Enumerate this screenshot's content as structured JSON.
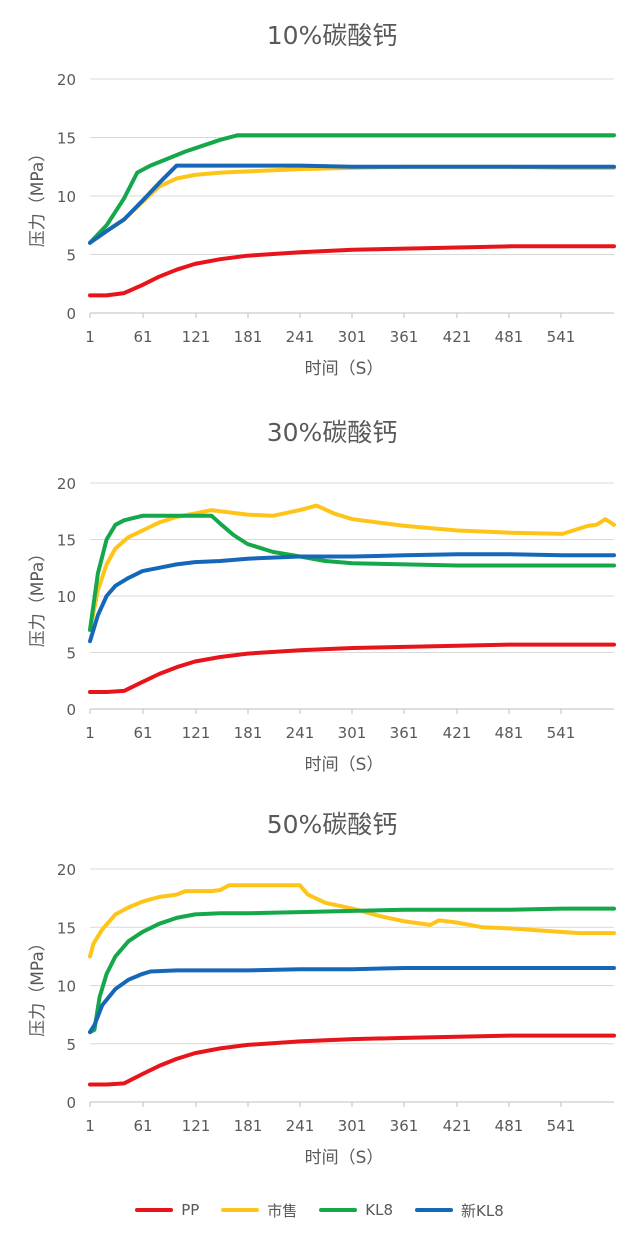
{
  "colors": {
    "PP": "#e8141b",
    "市售": "#ffc418",
    "KL8": "#14a84a",
    "新KL8": "#1767b8",
    "grid": "#d9d9d9",
    "text": "#595959"
  },
  "chart_data": [
    {
      "type": "line",
      "title": "10%碳酸钙",
      "xlabel": "时间（S）",
      "ylabel": "压力（MPa）",
      "ylim": [
        0,
        20
      ],
      "xlim": [
        1,
        600
      ],
      "yticks": [
        "0",
        "5",
        "10",
        "15",
        "20"
      ],
      "xticks": [
        "1",
        "61",
        "121",
        "181",
        "241",
        "301",
        "361",
        "421",
        "481",
        "541"
      ],
      "grid": true,
      "series": [
        {
          "name": "PP",
          "x": [
            1,
            20,
            40,
            61,
            80,
            100,
            121,
            150,
            181,
            241,
            301,
            361,
            421,
            481,
            541,
            600
          ],
          "y": [
            1.5,
            1.5,
            1.7,
            2.4,
            3.1,
            3.7,
            4.2,
            4.6,
            4.9,
            5.2,
            5.4,
            5.5,
            5.6,
            5.7,
            5.7,
            5.7
          ]
        },
        {
          "name": "市售",
          "x": [
            1,
            20,
            40,
            61,
            80,
            100,
            121,
            150,
            181,
            241,
            301,
            361,
            421,
            481,
            541,
            600
          ],
          "y": [
            6.0,
            7.0,
            8.0,
            9.5,
            10.8,
            11.5,
            11.8,
            12.0,
            12.1,
            12.3,
            12.4,
            12.5,
            12.5,
            12.5,
            12.4,
            12.4
          ]
        },
        {
          "name": "KL8",
          "x": [
            1,
            20,
            40,
            55,
            70,
            90,
            110,
            130,
            150,
            170,
            200,
            241,
            301,
            361,
            421,
            481,
            541,
            600
          ],
          "y": [
            6.0,
            7.5,
            9.8,
            12.0,
            12.6,
            13.2,
            13.8,
            14.3,
            14.8,
            15.2,
            15.2,
            15.2,
            15.2,
            15.2,
            15.2,
            15.2,
            15.2,
            15.2
          ]
        },
        {
          "name": "新KL8",
          "x": [
            1,
            20,
            40,
            61,
            80,
            100,
            121,
            150,
            181,
            241,
            301,
            361,
            421,
            481,
            541,
            600
          ],
          "y": [
            6.0,
            7.0,
            8.0,
            9.6,
            11.1,
            12.6,
            12.6,
            12.6,
            12.6,
            12.6,
            12.5,
            12.5,
            12.5,
            12.5,
            12.5,
            12.5
          ]
        }
      ]
    },
    {
      "type": "line",
      "title": "30%碳酸钙",
      "xlabel": "时间（S）",
      "ylabel": "压力（MPa）",
      "ylim": [
        0,
        20
      ],
      "xlim": [
        1,
        600
      ],
      "yticks": [
        "0",
        "5",
        "10",
        "15",
        "20"
      ],
      "xticks": [
        "1",
        "61",
        "121",
        "181",
        "241",
        "301",
        "361",
        "421",
        "481",
        "541"
      ],
      "grid": true,
      "series": [
        {
          "name": "PP",
          "x": [
            1,
            20,
            40,
            61,
            80,
            100,
            121,
            150,
            181,
            241,
            301,
            361,
            421,
            481,
            541,
            600
          ],
          "y": [
            1.5,
            1.5,
            1.6,
            2.4,
            3.1,
            3.7,
            4.2,
            4.6,
            4.9,
            5.2,
            5.4,
            5.5,
            5.6,
            5.7,
            5.7,
            5.7
          ]
        },
        {
          "name": "市售",
          "x": [
            1,
            10,
            20,
            30,
            45,
            61,
            80,
            100,
            121,
            140,
            150,
            181,
            210,
            241,
            260,
            280,
            301,
            361,
            421,
            481,
            541,
            570,
            580,
            590,
            600
          ],
          "y": [
            7.0,
            10.5,
            12.8,
            14.2,
            15.2,
            15.8,
            16.5,
            17.0,
            17.3,
            17.6,
            17.5,
            17.2,
            17.1,
            17.6,
            18.0,
            17.3,
            16.8,
            16.2,
            15.8,
            15.6,
            15.5,
            16.2,
            16.3,
            16.8,
            16.3
          ]
        },
        {
          "name": "KL8",
          "x": [
            1,
            10,
            20,
            30,
            40,
            61,
            80,
            100,
            121,
            140,
            150,
            165,
            181,
            210,
            241,
            270,
            301,
            361,
            421,
            481,
            541,
            600
          ],
          "y": [
            7.0,
            12.0,
            15.0,
            16.3,
            16.7,
            17.1,
            17.1,
            17.1,
            17.1,
            17.1,
            16.4,
            15.4,
            14.6,
            13.9,
            13.5,
            13.1,
            12.9,
            12.8,
            12.7,
            12.7,
            12.7,
            12.7
          ]
        },
        {
          "name": "新KL8",
          "x": [
            1,
            10,
            20,
            30,
            45,
            61,
            80,
            100,
            121,
            150,
            181,
            241,
            301,
            361,
            421,
            481,
            541,
            600
          ],
          "y": [
            6.0,
            8.3,
            10.0,
            10.9,
            11.6,
            12.2,
            12.5,
            12.8,
            13.0,
            13.1,
            13.3,
            13.5,
            13.5,
            13.6,
            13.7,
            13.7,
            13.6,
            13.6
          ]
        }
      ]
    },
    {
      "type": "line",
      "title": "50%碳酸钙",
      "xlabel": "时间（S）",
      "ylabel": "压力（MPa）",
      "ylim": [
        0,
        20
      ],
      "xlim": [
        1,
        600
      ],
      "yticks": [
        "0",
        "5",
        "10",
        "15",
        "20"
      ],
      "xticks": [
        "1",
        "61",
        "121",
        "181",
        "241",
        "301",
        "361",
        "421",
        "481",
        "541"
      ],
      "grid": true,
      "series": [
        {
          "name": "PP",
          "x": [
            1,
            20,
            40,
            61,
            80,
            100,
            121,
            150,
            181,
            241,
            301,
            361,
            421,
            481,
            541,
            600
          ],
          "y": [
            1.5,
            1.5,
            1.6,
            2.4,
            3.1,
            3.7,
            4.2,
            4.6,
            4.9,
            5.2,
            5.4,
            5.5,
            5.6,
            5.7,
            5.7,
            5.7
          ]
        },
        {
          "name": "市售",
          "x": [
            1,
            5,
            15,
            30,
            45,
            61,
            80,
            100,
            110,
            121,
            140,
            150,
            160,
            181,
            215,
            241,
            250,
            270,
            301,
            330,
            361,
            390,
            400,
            421,
            450,
            481,
            520,
            560,
            600
          ],
          "y": [
            12.5,
            13.6,
            14.8,
            16.1,
            16.7,
            17.2,
            17.6,
            17.8,
            18.1,
            18.1,
            18.1,
            18.2,
            18.6,
            18.6,
            18.6,
            18.6,
            17.8,
            17.1,
            16.6,
            16.0,
            15.5,
            15.2,
            15.6,
            15.4,
            15.0,
            14.9,
            14.7,
            14.5,
            14.5
          ]
        },
        {
          "name": "KL8",
          "x": [
            1,
            6,
            12,
            20,
            30,
            45,
            61,
            80,
            100,
            121,
            150,
            181,
            241,
            301,
            361,
            421,
            481,
            541,
            600
          ],
          "y": [
            6.0,
            6.2,
            9.0,
            11.0,
            12.5,
            13.8,
            14.6,
            15.3,
            15.8,
            16.1,
            16.2,
            16.2,
            16.3,
            16.4,
            16.5,
            16.5,
            16.5,
            16.6,
            16.6
          ]
        },
        {
          "name": "新KL8",
          "x": [
            1,
            6,
            15,
            30,
            45,
            61,
            70,
            100,
            121,
            150,
            181,
            241,
            301,
            361,
            421,
            481,
            541,
            600
          ],
          "y": [
            6.0,
            6.6,
            8.3,
            9.7,
            10.5,
            11.0,
            11.2,
            11.3,
            11.3,
            11.3,
            11.3,
            11.4,
            11.4,
            11.5,
            11.5,
            11.5,
            11.5,
            11.5
          ]
        }
      ]
    }
  ],
  "legend": [
    {
      "label": "PP",
      "color": "#e8141b"
    },
    {
      "label": "市售",
      "color": "#ffc418"
    },
    {
      "label": "KL8",
      "color": "#14a84a"
    },
    {
      "label": "新KL8",
      "color": "#1767b8"
    }
  ]
}
